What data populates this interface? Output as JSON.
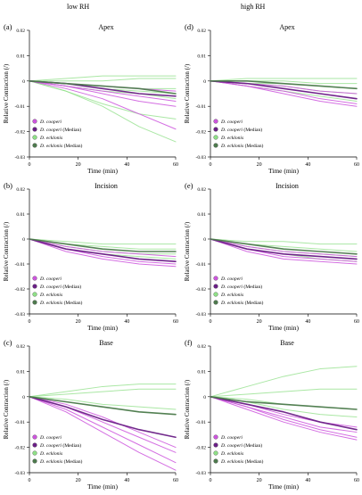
{
  "col_titles": [
    "low RH",
    "high RH"
  ],
  "colors": {
    "cooperi": "#cc55dd",
    "cooperi_median": "#6a1f86",
    "ecklonis": "#8edf86",
    "ecklonis_median": "#4d7a4d"
  },
  "legend": [
    {
      "italic": "D. cooperi",
      "suffix": "",
      "key": "cooperi"
    },
    {
      "italic": "D. cooperi",
      "suffix": " (Median)",
      "key": "cooperi_median"
    },
    {
      "italic": "D. ecklonis",
      "suffix": "",
      "key": "ecklonis"
    },
    {
      "italic": "D. ecklonis",
      "suffix": " (Median)",
      "key": "ecklonis_median"
    }
  ],
  "chart_data": [
    {
      "type": "line",
      "panel": "(a)",
      "title": "Apex",
      "column": "low RH",
      "xlabel": "Time (min)",
      "ylabel": "Relative Contraction (/)",
      "xlim": [
        0,
        60
      ],
      "ylim": [
        -0.03,
        0.02
      ],
      "xticks": [
        0,
        20,
        40,
        60
      ],
      "yticks": [
        0.02,
        0.01,
        0,
        -0.01,
        -0.02,
        -0.03
      ],
      "ytick_labels": [
        "0.02",
        "0.01",
        "0",
        "-0.01",
        "-0.02",
        "-0.03"
      ],
      "x": [
        0,
        15,
        30,
        45,
        60
      ],
      "series": [
        {
          "group": "ecklonis",
          "values": [
            0,
            0.001,
            0.002,
            0.002,
            0.002
          ]
        },
        {
          "group": "ecklonis",
          "values": [
            0,
            0.0,
            0.0,
            0.001,
            0.001
          ]
        },
        {
          "group": "ecklonis",
          "values": [
            0,
            -0.001,
            -0.002,
            -0.003,
            -0.003
          ]
        },
        {
          "group": "ecklonis",
          "values": [
            0,
            -0.001,
            -0.003,
            -0.004,
            -0.005
          ]
        },
        {
          "group": "ecklonis",
          "values": [
            0,
            -0.002,
            -0.004,
            -0.005,
            -0.007
          ]
        },
        {
          "group": "ecklonis",
          "values": [
            0,
            -0.004,
            -0.009,
            -0.013,
            -0.015
          ]
        },
        {
          "group": "ecklonis",
          "values": [
            0,
            -0.004,
            -0.01,
            -0.018,
            -0.024
          ]
        },
        {
          "group": "cooperi",
          "values": [
            0,
            -0.001,
            -0.002,
            -0.003,
            -0.004
          ]
        },
        {
          "group": "cooperi",
          "values": [
            0,
            -0.002,
            -0.004,
            -0.006,
            -0.008
          ]
        },
        {
          "group": "cooperi",
          "values": [
            0,
            -0.002,
            -0.005,
            -0.008,
            -0.01
          ]
        },
        {
          "group": "cooperi",
          "values": [
            0,
            -0.003,
            -0.007,
            -0.013,
            -0.019
          ]
        },
        {
          "group": "cooperi_median",
          "values": [
            0,
            -0.001,
            -0.003,
            -0.005,
            -0.006
          ]
        },
        {
          "group": "ecklonis_median",
          "values": [
            0,
            -0.001,
            -0.002,
            -0.003,
            -0.005
          ]
        }
      ]
    },
    {
      "type": "line",
      "panel": "(d)",
      "title": "Apex",
      "column": "high RH",
      "xlabel": "Time (min)",
      "ylabel": "Relative Contraction (/)",
      "xlim": [
        0,
        60
      ],
      "ylim": [
        -0.03,
        0.02
      ],
      "xticks": [
        0,
        20,
        40,
        60
      ],
      "yticks": [
        0.02,
        0.01,
        0,
        -0.01,
        -0.02,
        -0.03
      ],
      "ytick_labels": [
        "0.02",
        "0.01",
        "0",
        "-0.01",
        "-0.02",
        "-0.03"
      ],
      "x": [
        0,
        15,
        30,
        45,
        60
      ],
      "series": [
        {
          "group": "ecklonis",
          "values": [
            0,
            0.001,
            0.001,
            0.001,
            0.001
          ]
        },
        {
          "group": "ecklonis",
          "values": [
            0,
            0.0,
            0.0,
            -0.001,
            -0.001
          ]
        },
        {
          "group": "ecklonis",
          "values": [
            0,
            -0.001,
            -0.001,
            -0.002,
            -0.003
          ]
        },
        {
          "group": "ecklonis",
          "values": [
            0,
            -0.001,
            -0.002,
            -0.004,
            -0.005
          ]
        },
        {
          "group": "ecklonis",
          "values": [
            0,
            -0.002,
            -0.004,
            -0.006,
            -0.008
          ]
        },
        {
          "group": "cooperi",
          "values": [
            0,
            -0.001,
            -0.002,
            -0.004,
            -0.005
          ]
        },
        {
          "group": "cooperi",
          "values": [
            0,
            -0.001,
            -0.003,
            -0.005,
            -0.007
          ]
        },
        {
          "group": "cooperi",
          "values": [
            0,
            -0.002,
            -0.004,
            -0.007,
            -0.009
          ]
        },
        {
          "group": "cooperi",
          "values": [
            0,
            -0.002,
            -0.005,
            -0.008,
            -0.01
          ]
        },
        {
          "group": "cooperi_median",
          "values": [
            0,
            -0.001,
            -0.003,
            -0.005,
            -0.007
          ]
        },
        {
          "group": "ecklonis_median",
          "values": [
            0,
            0.0,
            -0.001,
            -0.002,
            -0.003
          ]
        }
      ]
    },
    {
      "type": "line",
      "panel": "(b)",
      "title": "Incision",
      "column": "low RH",
      "xlabel": "Time (min)",
      "ylabel": "Relative Contraction (/)",
      "xlim": [
        0,
        60
      ],
      "ylim": [
        -0.03,
        0.02
      ],
      "xticks": [
        0,
        20,
        40,
        60
      ],
      "yticks": [
        0.02,
        0.01,
        0,
        -0.01,
        -0.02,
        -0.03
      ],
      "ytick_labels": [
        "0.02",
        "0.01",
        "0",
        "-0.01",
        "-0.02",
        "-0.03"
      ],
      "x": [
        0,
        15,
        30,
        45,
        60
      ],
      "series": [
        {
          "group": "ecklonis",
          "values": [
            0,
            -0.001,
            -0.002,
            -0.002,
            -0.002
          ]
        },
        {
          "group": "ecklonis",
          "values": [
            0,
            -0.002,
            -0.003,
            -0.004,
            -0.004
          ]
        },
        {
          "group": "ecklonis",
          "values": [
            0,
            -0.003,
            -0.005,
            -0.006,
            -0.006
          ]
        },
        {
          "group": "ecklonis",
          "values": [
            0,
            -0.004,
            -0.006,
            -0.007,
            -0.008
          ]
        },
        {
          "group": "cooperi",
          "values": [
            0,
            -0.003,
            -0.005,
            -0.006,
            -0.007
          ]
        },
        {
          "group": "cooperi",
          "values": [
            0,
            -0.004,
            -0.006,
            -0.008,
            -0.009
          ]
        },
        {
          "group": "cooperi",
          "values": [
            0,
            -0.004,
            -0.007,
            -0.009,
            -0.01
          ]
        },
        {
          "group": "cooperi",
          "values": [
            0,
            -0.005,
            -0.008,
            -0.01,
            -0.011
          ]
        },
        {
          "group": "cooperi_median",
          "values": [
            0,
            -0.004,
            -0.006,
            -0.008,
            -0.009
          ]
        },
        {
          "group": "ecklonis_median",
          "values": [
            0,
            -0.002,
            -0.004,
            -0.005,
            -0.005
          ]
        }
      ]
    },
    {
      "type": "line",
      "panel": "(e)",
      "title": "Incision",
      "column": "high RH",
      "xlabel": "Time (min)",
      "ylabel": "Relative Contraction (/)",
      "xlim": [
        0,
        60
      ],
      "ylim": [
        -0.03,
        0.02
      ],
      "xticks": [
        0,
        20,
        40,
        60
      ],
      "yticks": [
        0.02,
        0.01,
        0,
        -0.01,
        -0.02,
        -0.03
      ],
      "ytick_labels": [
        "0.02",
        "0.01",
        "0",
        "-0.01",
        "-0.02",
        "-0.03"
      ],
      "x": [
        0,
        15,
        30,
        45,
        60
      ],
      "series": [
        {
          "group": "ecklonis",
          "values": [
            0,
            -0.001,
            -0.001,
            -0.002,
            -0.002
          ]
        },
        {
          "group": "ecklonis",
          "values": [
            0,
            -0.002,
            -0.003,
            -0.004,
            -0.005
          ]
        },
        {
          "group": "ecklonis",
          "values": [
            0,
            -0.003,
            -0.005,
            -0.006,
            -0.007
          ]
        },
        {
          "group": "ecklonis",
          "values": [
            0,
            -0.004,
            -0.006,
            -0.008,
            -0.009
          ]
        },
        {
          "group": "cooperi",
          "values": [
            0,
            -0.003,
            -0.005,
            -0.006,
            -0.007
          ]
        },
        {
          "group": "cooperi",
          "values": [
            0,
            -0.004,
            -0.006,
            -0.007,
            -0.008
          ]
        },
        {
          "group": "cooperi",
          "values": [
            0,
            -0.004,
            -0.007,
            -0.008,
            -0.009
          ]
        },
        {
          "group": "cooperi",
          "values": [
            0,
            -0.005,
            -0.008,
            -0.009,
            -0.01
          ]
        },
        {
          "group": "cooperi_median",
          "values": [
            0,
            -0.004,
            -0.006,
            -0.007,
            -0.008
          ]
        },
        {
          "group": "ecklonis_median",
          "values": [
            0,
            -0.002,
            -0.004,
            -0.005,
            -0.006
          ]
        }
      ]
    },
    {
      "type": "line",
      "panel": "(c)",
      "title": "Base",
      "column": "low RH",
      "xlabel": "Time (min)",
      "ylabel": "Relative Contraction (/)",
      "xlim": [
        0,
        60
      ],
      "ylim": [
        -0.03,
        0.02
      ],
      "xticks": [
        0,
        20,
        40,
        60
      ],
      "yticks": [
        0.02,
        0.01,
        0,
        -0.01,
        -0.02,
        -0.03
      ],
      "ytick_labels": [
        "0.02",
        "0.01",
        "0",
        "-0.01",
        "-0.02",
        "-0.03"
      ],
      "x": [
        0,
        15,
        30,
        45,
        60
      ],
      "series": [
        {
          "group": "ecklonis",
          "values": [
            0,
            0.002,
            0.004,
            0.005,
            0.005
          ]
        },
        {
          "group": "ecklonis",
          "values": [
            0,
            0.001,
            0.002,
            0.003,
            0.003
          ]
        },
        {
          "group": "ecklonis",
          "values": [
            0,
            -0.001,
            -0.003,
            -0.004,
            -0.005
          ]
        },
        {
          "group": "ecklonis",
          "values": [
            0,
            -0.002,
            -0.004,
            -0.006,
            -0.007
          ]
        },
        {
          "group": "cooperi",
          "values": [
            0,
            -0.003,
            -0.008,
            -0.014,
            -0.02
          ]
        },
        {
          "group": "cooperi",
          "values": [
            0,
            -0.004,
            -0.01,
            -0.016,
            -0.022
          ]
        },
        {
          "group": "cooperi",
          "values": [
            0,
            -0.005,
            -0.012,
            -0.019,
            -0.026
          ]
        },
        {
          "group": "cooperi",
          "values": [
            0,
            -0.006,
            -0.014,
            -0.022,
            -0.029
          ]
        },
        {
          "group": "cooperi_median",
          "values": [
            0,
            -0.004,
            -0.009,
            -0.013,
            -0.016
          ]
        },
        {
          "group": "ecklonis_median",
          "values": [
            0,
            -0.002,
            -0.004,
            -0.006,
            -0.007
          ]
        }
      ]
    },
    {
      "type": "line",
      "panel": "(f)",
      "title": "Base",
      "column": "high RH",
      "xlabel": "Time (min)",
      "ylabel": "Relative Contraction (/)",
      "xlim": [
        0,
        60
      ],
      "ylim": [
        -0.03,
        0.02
      ],
      "xticks": [
        0,
        20,
        40,
        60
      ],
      "yticks": [
        0.02,
        0.01,
        0,
        -0.01,
        -0.02,
        -0.03
      ],
      "ytick_labels": [
        "0.02",
        "0.01",
        "0",
        "-0.01",
        "-0.02",
        "-0.03"
      ],
      "x": [
        0,
        15,
        30,
        45,
        60
      ],
      "series": [
        {
          "group": "ecklonis",
          "values": [
            0,
            0.004,
            0.008,
            0.011,
            0.012
          ]
        },
        {
          "group": "ecklonis",
          "values": [
            0,
            0.001,
            0.002,
            0.003,
            0.003
          ]
        },
        {
          "group": "ecklonis",
          "values": [
            0,
            -0.001,
            -0.003,
            -0.004,
            -0.005
          ]
        },
        {
          "group": "ecklonis",
          "values": [
            0,
            -0.002,
            -0.005,
            -0.007,
            -0.008
          ]
        },
        {
          "group": "cooperi",
          "values": [
            0,
            -0.003,
            -0.007,
            -0.01,
            -0.012
          ]
        },
        {
          "group": "cooperi",
          "values": [
            0,
            -0.004,
            -0.008,
            -0.012,
            -0.014
          ]
        },
        {
          "group": "cooperi",
          "values": [
            0,
            -0.004,
            -0.009,
            -0.013,
            -0.016
          ]
        },
        {
          "group": "cooperi",
          "values": [
            0,
            -0.005,
            -0.01,
            -0.014,
            -0.017
          ]
        },
        {
          "group": "cooperi_median",
          "values": [
            0,
            -0.003,
            -0.006,
            -0.01,
            -0.013
          ]
        },
        {
          "group": "ecklonis_median",
          "values": [
            0,
            -0.002,
            -0.003,
            -0.004,
            -0.005
          ]
        }
      ]
    }
  ]
}
